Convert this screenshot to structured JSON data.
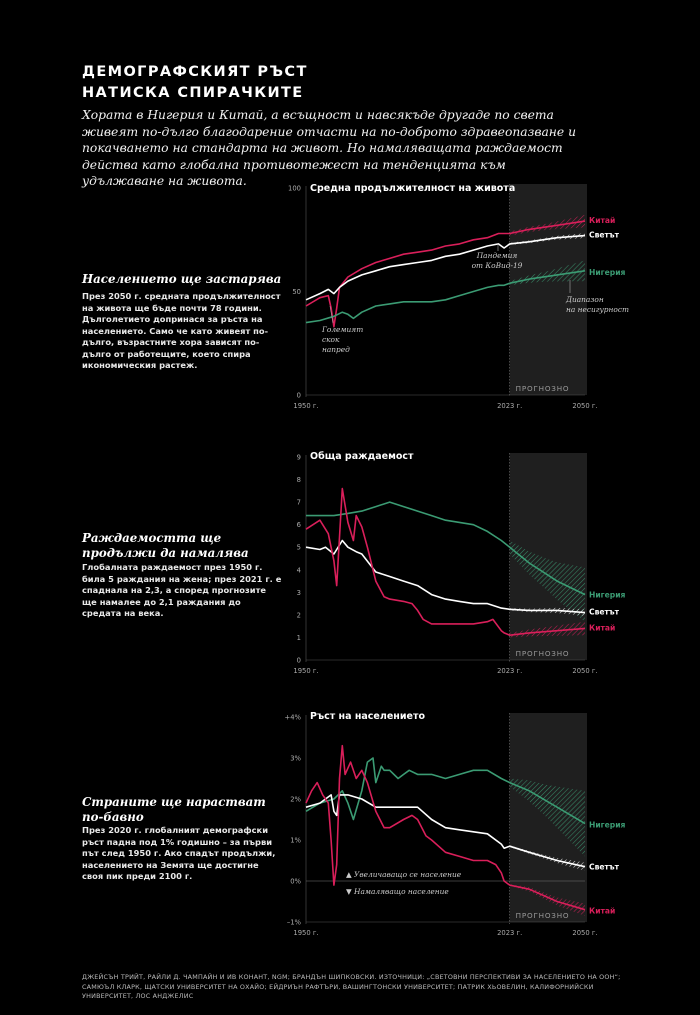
{
  "header": {
    "title_line1": "Демографският ръст",
    "title_line2": "натиска спирачките",
    "intro": "Хората в Нигерия и Китай, а всъщност и навсякъде другаде по света живеят по-дълго благодарение отчасти на по-доброто здравеопазване и покачването на стандарта на живот. Но намаляващата раждаемост действа като глобална противотежест на тенденцията към удължаване на живота."
  },
  "sections": [
    {
      "heading": "Населението ще застарява",
      "text": "През 2050 г. средната продължителност на живота ще бъде почти 78 години. Дълголетието допринася за ръста на населението. Само че като живеят по-дълго, възрастните хора зависят по-дълго от работещите, което спира икономическия растеж."
    },
    {
      "heading": "Раждаемостта ще продължи да намалява",
      "text": "Глобалната раждаемост през 1950 г. била 5 раждания на жена; през 2021 г. е спаднала на 2,3, а според прогнозите ще намалее до 2,1 раждания до средата на века."
    },
    {
      "heading": "Страните ще нарастват по-бавно",
      "text": "През 2020 г. глобалният демографски ръст падна под 1% годишно – за първи път след 1950 г. Ако спадът продължи, населението на Земята ще достигне своя пик преди 2100 г."
    }
  ],
  "colors": {
    "china": "#d91f5a",
    "world": "#ffffff",
    "nigeria": "#3b9b73",
    "forecast_band": "#1f1f1f"
  },
  "chart_data": [
    {
      "type": "line",
      "title": "Средна продължителност на живота",
      "xlim": [
        1950,
        2050
      ],
      "ylim": [
        0,
        100
      ],
      "yticks": [
        "0",
        "50",
        "100"
      ],
      "xticks": [
        "1950 г.",
        "2023 г.",
        "2050 г."
      ],
      "forecast_start": 2023,
      "forecast_label": "ПРОГНОЗНО",
      "annotations": [
        "Голeмият скок напред",
        "Пандемия от КоВид-19",
        "Диапазон на несигурност"
      ],
      "series": [
        {
          "name": "Китай",
          "key": "china",
          "x": [
            1950,
            1955,
            1958,
            1959,
            1960,
            1961,
            1962,
            1965,
            1970,
            1975,
            1980,
            1985,
            1990,
            1995,
            2000,
            2005,
            2010,
            2015,
            2019,
            2021,
            2023,
            2030,
            2040,
            2050
          ],
          "y": [
            43,
            47,
            48,
            42,
            33,
            42,
            52,
            57,
            61,
            64,
            66,
            68,
            69,
            70,
            72,
            73,
            75,
            76,
            78,
            78,
            78,
            80,
            82,
            84
          ],
          "band": [
            1,
            1.5,
            3
          ]
        },
        {
          "name": "Светът",
          "key": "world",
          "x": [
            1950,
            1955,
            1958,
            1960,
            1962,
            1965,
            1970,
            1975,
            1980,
            1985,
            1990,
            1995,
            2000,
            2005,
            2010,
            2015,
            2019,
            2020,
            2021,
            2022,
            2023,
            2030,
            2040,
            2050
          ],
          "y": [
            46,
            49,
            51,
            49,
            52,
            55,
            58,
            60,
            62,
            63,
            64,
            65,
            67,
            68,
            70,
            72,
            73,
            72,
            71,
            72,
            73,
            74,
            76,
            77
          ],
          "band": [
            0.5,
            0.8,
            1.2
          ]
        },
        {
          "name": "Нигерия",
          "key": "nigeria",
          "x": [
            1950,
            1955,
            1960,
            1963,
            1965,
            1967,
            1970,
            1975,
            1980,
            1985,
            1990,
            1995,
            2000,
            2005,
            2010,
            2015,
            2019,
            2021,
            2023,
            2030,
            2040,
            2050
          ],
          "y": [
            35,
            36,
            38,
            40,
            39,
            37,
            40,
            43,
            44,
            45,
            45,
            45,
            46,
            48,
            50,
            52,
            53,
            53,
            54,
            56,
            58,
            60
          ],
          "band": [
            1,
            2.5,
            5
          ]
        }
      ]
    },
    {
      "type": "line",
      "title": "Обща раждаемост",
      "xlim": [
        1950,
        2050
      ],
      "ylim": [
        0,
        9
      ],
      "yticks": [
        "0",
        "1",
        "2",
        "3",
        "4",
        "5",
        "6",
        "7",
        "8",
        "9"
      ],
      "xticks": [
        "1950 г.",
        "2023 г.",
        "2050 г."
      ],
      "forecast_start": 2023,
      "forecast_label": "ПРОГНОЗНО",
      "series": [
        {
          "name": "Нигерия",
          "key": "nigeria",
          "x": [
            1950,
            1955,
            1960,
            1965,
            1970,
            1975,
            1980,
            1985,
            1990,
            1995,
            2000,
            2005,
            2010,
            2015,
            2020,
            2023,
            2030,
            2040,
            2050
          ],
          "y": [
            6.4,
            6.4,
            6.4,
            6.5,
            6.6,
            6.8,
            7.0,
            6.8,
            6.6,
            6.4,
            6.2,
            6.1,
            6.0,
            5.7,
            5.3,
            5.0,
            4.3,
            3.5,
            2.9
          ],
          "band": [
            0.3,
            0.7,
            1.2
          ]
        },
        {
          "name": "Светът",
          "key": "world",
          "x": [
            1950,
            1955,
            1957,
            1960,
            1963,
            1965,
            1968,
            1970,
            1975,
            1980,
            1985,
            1990,
            1995,
            2000,
            2005,
            2010,
            2015,
            2020,
            2023,
            2030,
            2040,
            2050
          ],
          "y": [
            5.0,
            4.9,
            5.0,
            4.7,
            5.3,
            5.0,
            4.8,
            4.7,
            3.9,
            3.7,
            3.5,
            3.3,
            2.9,
            2.7,
            2.6,
            2.5,
            2.5,
            2.3,
            2.25,
            2.2,
            2.2,
            2.1
          ],
          "band": [
            0.05,
            0.1,
            0.15
          ]
        },
        {
          "name": "Китай",
          "key": "china",
          "x": [
            1950,
            1955,
            1958,
            1960,
            1961,
            1963,
            1965,
            1967,
            1968,
            1970,
            1972,
            1975,
            1978,
            1980,
            1985,
            1988,
            1990,
            1992,
            1995,
            2000,
            2005,
            2010,
            2015,
            2017,
            2020,
            2021,
            2023,
            2030,
            2040,
            2050
          ],
          "y": [
            5.8,
            6.2,
            5.6,
            4.4,
            3.3,
            7.6,
            6.1,
            5.3,
            6.4,
            5.9,
            5.0,
            3.5,
            2.8,
            2.7,
            2.6,
            2.5,
            2.2,
            1.8,
            1.6,
            1.6,
            1.6,
            1.6,
            1.7,
            1.8,
            1.3,
            1.2,
            1.1,
            1.2,
            1.3,
            1.4
          ],
          "band": [
            0.1,
            0.2,
            0.3
          ]
        }
      ]
    },
    {
      "type": "line",
      "title": "Ръст на населението",
      "xlim": [
        1950,
        2050
      ],
      "ylim": [
        -1,
        4
      ],
      "yticks": [
        "–1%",
        "0%",
        "1%",
        "2%",
        "3%",
        "+4%"
      ],
      "xticks": [
        "1950 г.",
        "2023 г.",
        "2050 г."
      ],
      "forecast_start": 2023,
      "forecast_label": "ПРОГНОЗНО",
      "annotations": [
        "Увеличаващо се население",
        "Намаляващо население"
      ],
      "series": [
        {
          "name": "Нигерия",
          "key": "nigeria",
          "x": [
            1950,
            1955,
            1960,
            1963,
            1965,
            1967,
            1970,
            1972,
            1974,
            1975,
            1977,
            1978,
            1980,
            1983,
            1985,
            1987,
            1990,
            1995,
            2000,
            2005,
            2010,
            2015,
            2020,
            2023,
            2030,
            2040,
            2050
          ],
          "y": [
            1.7,
            1.9,
            2.0,
            2.2,
            1.9,
            1.5,
            2.2,
            2.9,
            3.0,
            2.4,
            2.8,
            2.7,
            2.7,
            2.5,
            2.6,
            2.7,
            2.6,
            2.6,
            2.5,
            2.6,
            2.7,
            2.7,
            2.5,
            2.4,
            2.2,
            1.8,
            1.4
          ],
          "band": [
            0.1,
            0.4,
            0.8
          ]
        },
        {
          "name": "Светът",
          "key": "world",
          "x": [
            1950,
            1955,
            1957,
            1959,
            1960,
            1961,
            1962,
            1965,
            1970,
            1975,
            1980,
            1985,
            1990,
            1995,
            2000,
            2005,
            2010,
            2015,
            2020,
            2021,
            2023,
            2030,
            2040,
            2050
          ],
          "y": [
            1.8,
            1.9,
            2.0,
            2.1,
            1.7,
            1.6,
            2.1,
            2.1,
            2.0,
            1.8,
            1.8,
            1.8,
            1.8,
            1.5,
            1.3,
            1.25,
            1.2,
            1.15,
            0.9,
            0.8,
            0.85,
            0.7,
            0.5,
            0.35
          ],
          "band": [
            0.02,
            0.05,
            0.1
          ]
        },
        {
          "name": "Китай",
          "key": "china",
          "x": [
            1950,
            1952,
            1954,
            1956,
            1958,
            1959,
            1960,
            1961,
            1962,
            1963,
            1964,
            1966,
            1968,
            1970,
            1972,
            1975,
            1978,
            1980,
            1985,
            1988,
            1990,
            1993,
            1995,
            2000,
            2005,
            2010,
            2015,
            2018,
            2020,
            2021,
            2023,
            2030,
            2040,
            2050
          ],
          "y": [
            1.9,
            2.2,
            2.4,
            2.1,
            1.9,
            1.0,
            -0.1,
            0.4,
            2.5,
            3.3,
            2.6,
            2.9,
            2.5,
            2.7,
            2.4,
            1.7,
            1.3,
            1.3,
            1.5,
            1.6,
            1.5,
            1.1,
            1.0,
            0.7,
            0.6,
            0.5,
            0.5,
            0.4,
            0.2,
            0.0,
            -0.1,
            -0.2,
            -0.5,
            -0.7
          ],
          "band": [
            0.02,
            0.08,
            0.15
          ]
        }
      ]
    }
  ],
  "footer": "Джейсън Трийт, Райли Д. Чампайн и Ив Конант, NGM; Брандън Шипковски. Източници: „Световни перспективи за населението на ООН“; Самюъл Кларк, щатски университет на Охайо; Ейдриън Рафтъри, Вашингтонски университет; Патрик Хьовелин, Калифорнийски университет, Лос Анджелис"
}
